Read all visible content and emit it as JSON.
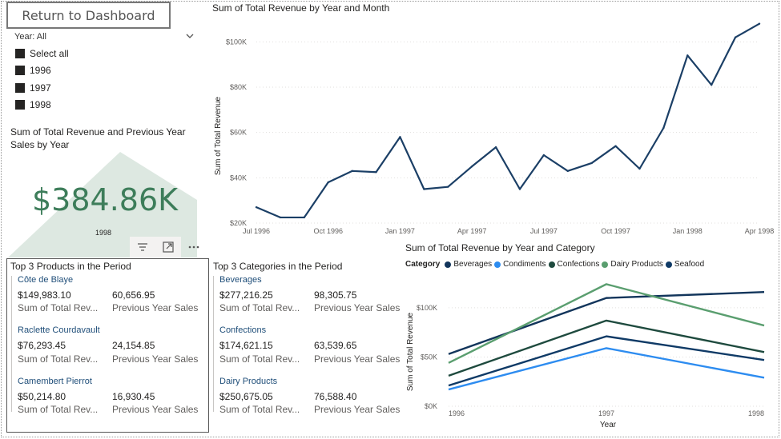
{
  "return_button": "Return to Dashboard",
  "slicer": {
    "header": "Year: All",
    "items": [
      "Select all",
      "1996",
      "1997",
      "1998"
    ]
  },
  "kpi": {
    "title": "Sum of Total Revenue and Previous Year Sales by Year",
    "value": "$384.86K",
    "year": "1998",
    "check": "✓"
  },
  "products": {
    "title": "Top 3 Products in the Period",
    "items": [
      {
        "name": "Côte de Blaye",
        "value": "$149,983.10",
        "prev": "60,656.95",
        "value_label": "Sum of Total Rev...",
        "prev_label": "Previous Year Sales"
      },
      {
        "name": "Raclette Courdavault",
        "value": "$76,293.45",
        "prev": "24,154.85",
        "value_label": "Sum of Total Rev...",
        "prev_label": "Previous Year Sales"
      },
      {
        "name": "Camembert Pierrot",
        "value": "$50,214.80",
        "prev": "16,930.45",
        "value_label": "Sum of Total Rev...",
        "prev_label": "Previous Year Sales"
      }
    ]
  },
  "categories_card": {
    "title": "Top 3 Categories in the Period",
    "items": [
      {
        "name": "Beverages",
        "value": "$277,216.25",
        "prev": "98,305.75",
        "value_label": "Sum of Total Rev...",
        "prev_label": "Previous Year Sales"
      },
      {
        "name": "Confections",
        "value": "$174,621.15",
        "prev": "63,539.65",
        "value_label": "Sum of Total Rev...",
        "prev_label": "Previous Year Sales"
      },
      {
        "name": "Dairy Products",
        "value": "$250,675.05",
        "prev": "76,588.40",
        "value_label": "Sum of Total Rev...",
        "prev_label": "Previous Year Sales"
      }
    ]
  },
  "icons": [
    "filter-icon",
    "focus-mode-icon",
    "more-options-icon",
    "chevron-down-icon"
  ],
  "colors": {
    "kpi_green": "#3d7d5a",
    "line_navy": "#1b3f66",
    "beverages": "#12355b",
    "condiments": "#2d8cf0",
    "confections": "#1e4a3e",
    "dairy": "#5a9e6f",
    "seafood": "#0f3a66"
  },
  "chart_data": [
    {
      "type": "line",
      "title": "Sum of Total Revenue by Year and Month",
      "ylabel": "Sum of Total Revenue",
      "xlabel": "",
      "x": [
        "Jul 1996",
        "Aug 1996",
        "Sep 1996",
        "Oct 1996",
        "Nov 1996",
        "Dec 1996",
        "Jan 1997",
        "Feb 1997",
        "Mar 1997",
        "Apr 1997",
        "May 1997",
        "Jun 1997",
        "Jul 1997",
        "Aug 1997",
        "Sep 1997",
        "Oct 1997",
        "Nov 1997",
        "Dec 1997",
        "Jan 1998",
        "Feb 1998",
        "Mar 1998",
        "Apr 1998"
      ],
      "x_tick_labels": [
        "Jul 1996",
        "Oct 1996",
        "Jan 1997",
        "Apr 1997",
        "Jul 1997",
        "Oct 1997",
        "Jan 1998",
        "Apr 1998"
      ],
      "y_tick_labels": [
        "$20K",
        "$40K",
        "$60K",
        "$80K",
        "$100K"
      ],
      "values": [
        27000,
        22500,
        22500,
        38000,
        43000,
        42500,
        58000,
        35000,
        36000,
        45000,
        53500,
        35000,
        50000,
        43000,
        46500,
        54000,
        44000,
        62000,
        94000,
        81000,
        102000,
        108000
      ],
      "ylim": [
        20000,
        110000
      ],
      "grid": true
    },
    {
      "type": "line",
      "title": "Sum of Total Revenue by Year and Category",
      "ylabel": "Sum of Total Revenue",
      "xlabel": "Year",
      "legend_title": "Category",
      "legend_position": "top-left",
      "categories": [
        "1996",
        "1997",
        "1998"
      ],
      "y_tick_labels": [
        "$0K",
        "$50K",
        "$100K"
      ],
      "ylim": [
        0,
        130000
      ],
      "series": [
        {
          "name": "Beverages",
          "values": [
            53000,
            110000,
            116000
          ]
        },
        {
          "name": "Condiments",
          "values": [
            17000,
            59000,
            29000
          ]
        },
        {
          "name": "Confections",
          "values": [
            31000,
            87000,
            55000
          ]
        },
        {
          "name": "Dairy Products",
          "values": [
            44000,
            124000,
            82000
          ]
        },
        {
          "name": "Seafood",
          "values": [
            21000,
            71000,
            47000
          ]
        }
      ],
      "grid": true
    }
  ]
}
